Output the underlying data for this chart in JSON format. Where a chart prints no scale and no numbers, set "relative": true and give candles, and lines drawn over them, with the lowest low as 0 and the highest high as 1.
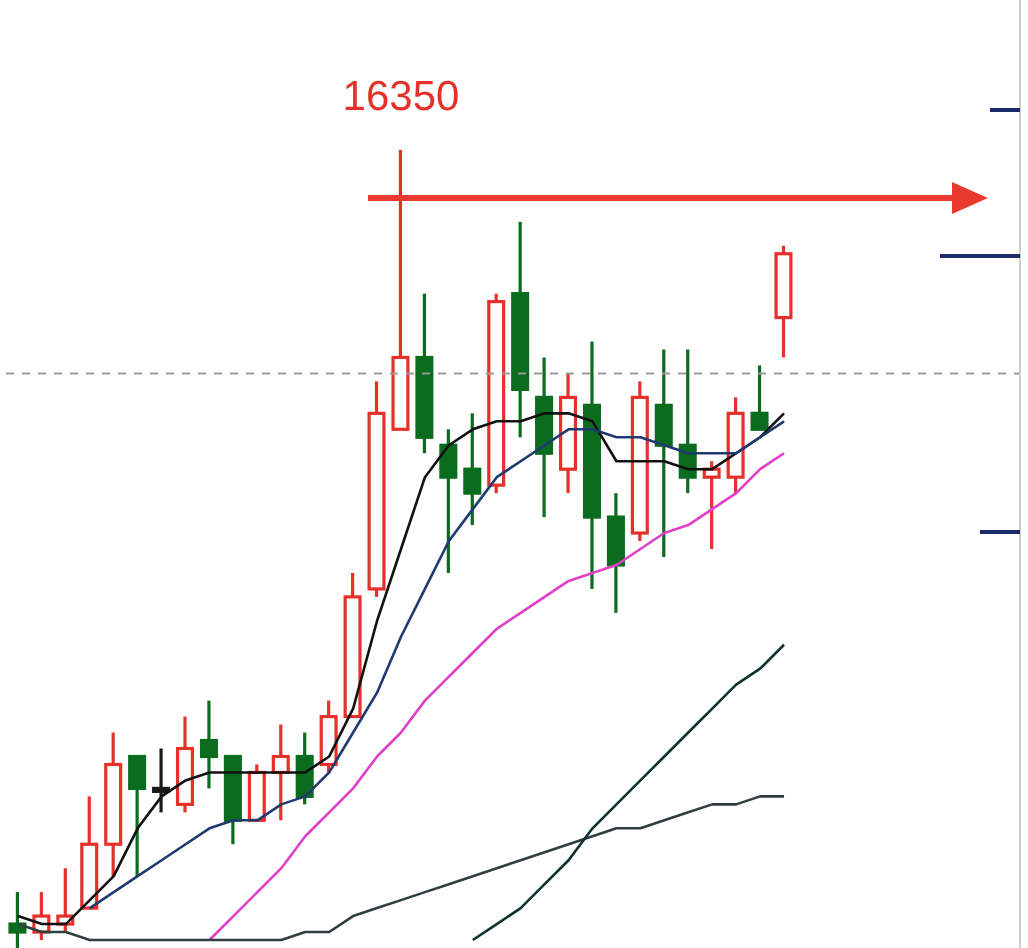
{
  "chart_data": {
    "type": "candlestick",
    "relative": true,
    "categories": [
      null,
      null,
      null,
      null,
      null,
      null,
      null,
      null,
      null,
      null,
      null,
      null,
      null,
      null,
      null,
      null,
      null,
      null,
      null,
      null,
      null,
      null,
      null,
      null,
      null,
      null,
      null,
      null,
      null,
      null,
      null,
      null,
      null
    ],
    "ohlc": [
      [
        0.03,
        0.07,
        0,
        0.02
      ],
      [
        0.02,
        0.07,
        0.01,
        0.04
      ],
      [
        0.03,
        0.1,
        0.02,
        0.04
      ],
      [
        0.05,
        0.19,
        0.05,
        0.13
      ],
      [
        0.13,
        0.27,
        0.09,
        0.23
      ],
      [
        0.24,
        0.24,
        0.09,
        0.2
      ],
      [
        0.2,
        0.25,
        0.17,
        0.2
      ],
      [
        0.18,
        0.29,
        0.17,
        0.25
      ],
      [
        0.26,
        0.31,
        0.2,
        0.24
      ],
      [
        0.24,
        0.24,
        0.13,
        0.16
      ],
      [
        0.16,
        0.23,
        0.16,
        0.22
      ],
      [
        0.22,
        0.28,
        0.16,
        0.24
      ],
      [
        0.24,
        0.27,
        0.18,
        0.19
      ],
      [
        0.23,
        0.31,
        0.22,
        0.29
      ],
      [
        0.29,
        0.47,
        0.29,
        0.44
      ],
      [
        0.45,
        0.71,
        0.44,
        0.67
      ],
      [
        0.65,
        1,
        0.65,
        0.74
      ],
      [
        0.74,
        0.82,
        0.62,
        0.64
      ],
      [
        0.63,
        0.65,
        0.47,
        0.59
      ],
      [
        0.6,
        0.67,
        0.53,
        0.57
      ],
      [
        0.58,
        0.82,
        0.57,
        0.81
      ],
      [
        0.82,
        0.91,
        0.64,
        0.7
      ],
      [
        0.69,
        0.74,
        0.54,
        0.62
      ],
      [
        0.6,
        0.72,
        0.57,
        0.69
      ],
      [
        0.68,
        0.76,
        0.45,
        0.54
      ],
      [
        0.54,
        0.57,
        0.42,
        0.48
      ],
      [
        0.52,
        0.71,
        0.51,
        0.69
      ],
      [
        0.68,
        0.75,
        0.49,
        0.63
      ],
      [
        0.63,
        0.75,
        0.57,
        0.59
      ],
      [
        0.59,
        0.61,
        0.5,
        0.6
      ],
      [
        0.59,
        0.69,
        0.57,
        0.67
      ],
      [
        0.67,
        0.73,
        0.65,
        0.65
      ],
      [
        0.79,
        0.88,
        0.74,
        0.87
      ]
    ],
    "colors": [
      "#0b6b1f",
      "#e5312a",
      "#e5312a",
      "#e5312a",
      "#e5312a",
      "#0b6b1f",
      "#1a1a1a",
      "#e5312a",
      "#0b6b1f",
      "#0b6b1f",
      "#e5312a",
      "#e5312a",
      "#0b6b1f",
      "#e5312a",
      "#e5312a",
      "#e5312a",
      "#e5312a",
      "#0b6b1f",
      "#0b6b1f",
      "#0b6b1f",
      "#e5312a",
      "#0b6b1f",
      "#0b6b1f",
      "#e5312a",
      "#0b6b1f",
      "#0b6b1f",
      "#e5312a",
      "#0b6b1f",
      "#0b6b1f",
      "#e5312a",
      "#e5312a",
      "#0b6b1f",
      "#e5312a"
    ],
    "series": [
      {
        "type": "line",
        "color": "#111111",
        "values": [
          0.04,
          0.03,
          0.03,
          0.06,
          0.09,
          0.15,
          0.19,
          0.21,
          0.22,
          0.22,
          0.22,
          0.22,
          0.22,
          0.24,
          0.3,
          0.41,
          0.5,
          0.59,
          0.63,
          0.65,
          0.66,
          0.66,
          0.67,
          0.67,
          0.66,
          0.61,
          0.61,
          0.61,
          0.6,
          0.6,
          0.62,
          0.64,
          0.67
        ]
      },
      {
        "type": "line",
        "color": "#1f3a6e",
        "values": [
          null,
          null,
          null,
          0.05,
          0.07,
          0.09,
          0.11,
          0.13,
          0.15,
          0.16,
          0.16,
          0.18,
          0.19,
          0.22,
          0.27,
          0.32,
          0.39,
          0.45,
          0.51,
          0.55,
          0.59,
          0.61,
          0.63,
          0.65,
          0.65,
          0.64,
          0.64,
          0.63,
          0.62,
          0.62,
          0.62,
          0.64,
          0.66
        ]
      },
      {
        "type": "line",
        "color": "#e040c8",
        "values": [
          null,
          null,
          null,
          null,
          null,
          null,
          null,
          null,
          0.01,
          0.04,
          0.07,
          0.1,
          0.14,
          0.17,
          0.2,
          0.24,
          0.27,
          0.31,
          0.34,
          0.37,
          0.4,
          0.42,
          0.44,
          0.46,
          0.47,
          0.48,
          0.5,
          0.52,
          0.53,
          0.55,
          0.57,
          0.6,
          0.62
        ]
      },
      {
        "type": "line",
        "color": "#2f3f3f",
        "values": [
          0.03,
          0.02,
          0.02,
          0.01,
          0.01,
          0.01,
          0.01,
          0.01,
          0.01,
          0.01,
          0.01,
          0.01,
          0.02,
          0.02,
          0.04,
          0.05,
          0.06,
          0.07,
          0.08,
          0.09,
          0.1,
          0.11,
          0.12,
          0.13,
          0.14,
          0.15,
          0.15,
          0.16,
          0.17,
          0.18,
          0.18,
          0.19,
          0.19
        ]
      },
      {
        "type": "line",
        "color": "#0e3030",
        "values": [
          null,
          null,
          null,
          null,
          null,
          null,
          null,
          null,
          null,
          null,
          null,
          null,
          null,
          null,
          null,
          null,
          null,
          null,
          null,
          0.01,
          0.03,
          0.05,
          0.08,
          0.11,
          0.15,
          0.18,
          0.21,
          0.24,
          0.27,
          0.3,
          0.33,
          0.35,
          0.38
        ]
      }
    ],
    "ref_lines": [
      {
        "axis": "y",
        "value": 0.72,
        "color": "#9a9a9a",
        "line_style": "dashed"
      }
    ],
    "annotations": [
      {
        "text": "16350",
        "y": 1
      }
    ],
    "marker": "none",
    "line_style": "solid"
  }
}
